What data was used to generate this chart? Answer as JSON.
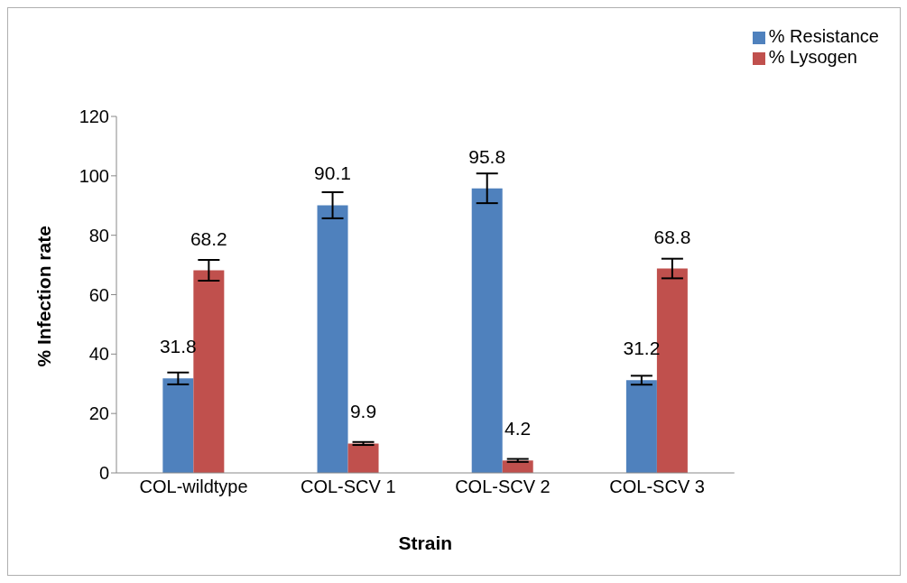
{
  "chart_data": {
    "type": "bar",
    "xlabel": "Strain",
    "ylabel": "% Infection rate",
    "categories": [
      "COL-wildtype",
      "COL-SCV 1",
      "COL-SCV 2",
      "COL-SCV 3"
    ],
    "series": [
      {
        "name": "% Resistance",
        "color": "#4f81bd",
        "values": [
          31.8,
          90.1,
          95.8,
          31.2
        ],
        "errors": [
          2,
          4.4,
          5,
          1.5
        ]
      },
      {
        "name": "% Lysogen",
        "color": "#c0504d",
        "values": [
          68.2,
          9.9,
          4.2,
          68.8
        ],
        "errors": [
          3.5,
          0.5,
          0.5,
          3.3
        ]
      }
    ],
    "ylim": [
      0,
      120
    ],
    "yticks": [
      0,
      20,
      40,
      60,
      80,
      100,
      120
    ],
    "grid": false,
    "legend": "top right",
    "data_labels": true
  }
}
